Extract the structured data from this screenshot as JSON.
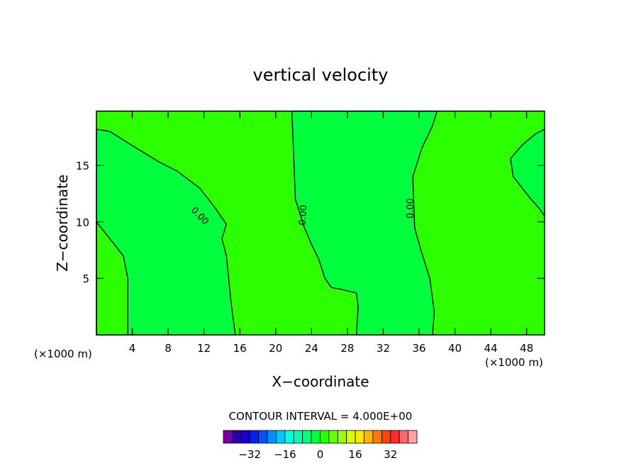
{
  "chart_data": {
    "type": "heatmap",
    "title": "vertical velocity",
    "xlabel": "X−coordinate",
    "ylabel": "Z−coordinate",
    "x_unit_left": "(×1000 m)",
    "x_unit_right": "(×1000 m)",
    "xlim": [
      0,
      50
    ],
    "ylim": [
      0,
      19.8
    ],
    "x_ticks": [
      4,
      8,
      12,
      16,
      20,
      24,
      28,
      32,
      36,
      40,
      44,
      48
    ],
    "x_tick_labels": [
      "4",
      "8",
      "12",
      "16",
      "20",
      "24",
      "28",
      "32",
      "36",
      "40",
      "44",
      "48"
    ],
    "y_ticks": [
      5,
      10,
      15
    ],
    "y_tick_labels": [
      "5",
      "10",
      "15"
    ],
    "colors": {
      "positive_fill": "#2bff00",
      "negative_fill": "#00ff3c"
    },
    "regions": [
      {
        "x": [
          0,
          1.5,
          3.5,
          7,
          9,
          11.5,
          13,
          14.5,
          14,
          14.5,
          15,
          15.5,
          0
        ],
        "y": [
          18.2,
          18,
          17,
          15.3,
          14.5,
          13,
          11.5,
          9.8,
          8.5,
          7,
          3,
          0,
          0
        ],
        "value": "negative"
      },
      {
        "x": [
          0,
          1,
          2,
          3,
          3.5,
          3.5,
          0
        ],
        "y": [
          10,
          9,
          8,
          7,
          5,
          0,
          0
        ],
        "value": "positive"
      },
      {
        "x": [
          21.8,
          22,
          22.2,
          23.2,
          24,
          24.8,
          25.5,
          26.2,
          27.5,
          29,
          29.2,
          29,
          29.8,
          33.5,
          36.5,
          37.5,
          37.7,
          37.2,
          36.2,
          35.5,
          35.3,
          36.3,
          37.5,
          38,
          37.8
        ],
        "y": [
          19.8,
          16,
          12,
          9.5,
          8,
          6.7,
          5,
          4.2,
          4,
          3.7,
          2.5,
          0,
          0,
          0,
          0,
          0,
          2,
          5,
          7.5,
          9.5,
          14,
          16.5,
          18.5,
          19.8,
          19.8
        ],
        "value": "negative"
      },
      {
        "x": [
          50,
          49,
          47.5,
          46.2,
          46.5,
          47.5,
          48.5,
          49.4,
          50
        ],
        "y": [
          18.2,
          17.8,
          16.8,
          15.6,
          14,
          13,
          12,
          11.2,
          10.5
        ],
        "value": "negative"
      }
    ],
    "contour_levels": [
      0
    ],
    "contour_labels": [
      {
        "text": "0.00",
        "x": 11.5,
        "y": 10.5,
        "angle": 46
      },
      {
        "text": "0.00",
        "x": 23.1,
        "y": 10.6,
        "angle": -86
      },
      {
        "text": "0.00",
        "x": 35.1,
        "y": 11.2,
        "angle": -90
      }
    ],
    "contour_interval_label": "CONTOUR INTERVAL = ",
    "contour_interval_value": "4.000E+00",
    "colorbar": {
      "colors": [
        "#7a00a6",
        "#2a00a6",
        "#1a00c8",
        "#0020ff",
        "#0052ff",
        "#0090ff",
        "#00c8ff",
        "#00ffe6",
        "#00ffb0",
        "#00ff78",
        "#00ff3c",
        "#2bff00",
        "#64ff00",
        "#9cff00",
        "#d6ff00",
        "#ffe600",
        "#ffb400",
        "#ff7c00",
        "#ff4400",
        "#ff2a2a",
        "#ff6868",
        "#ffa4a4"
      ],
      "tick_labels": [
        "−32",
        "−16",
        "0",
        "16",
        "32"
      ],
      "tick_values": [
        -32,
        -16,
        0,
        16,
        32
      ]
    }
  }
}
